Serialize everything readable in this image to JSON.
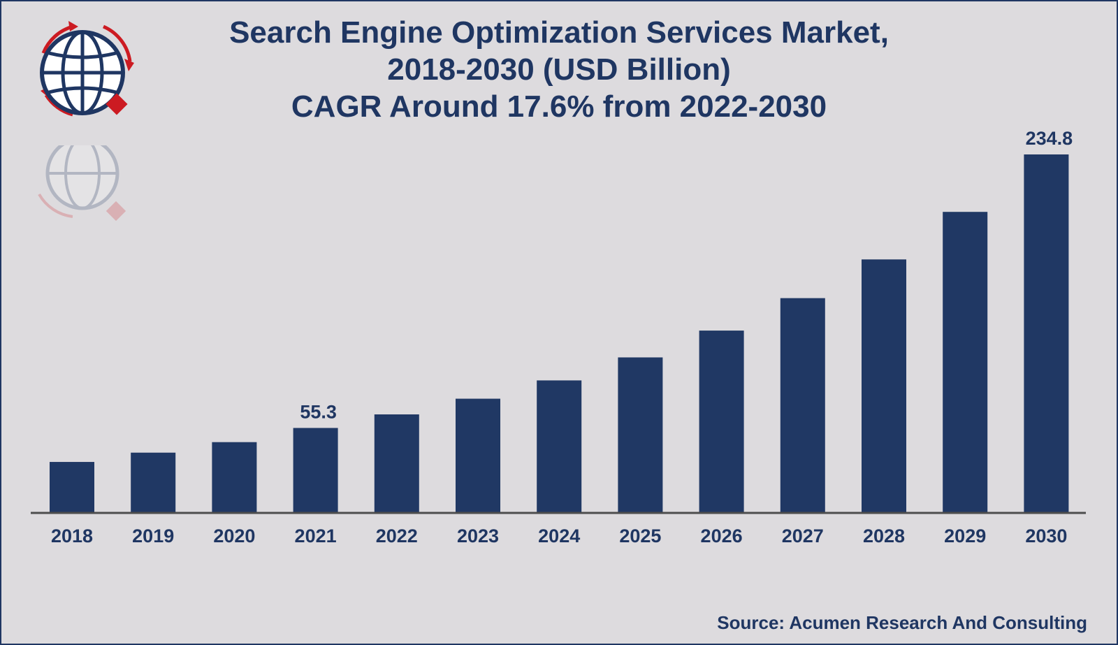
{
  "title_lines": [
    "Search Engine Optimization Services Market,",
    "2018-2030 (USD Billion)",
    "CAGR Around 17.6% from 2022-2030"
  ],
  "source": "Source: Acumen Research And Consulting",
  "logo": {
    "icon": "globe-logo-icon"
  },
  "colors": {
    "bar": "#203864",
    "text": "#1f3662",
    "background": "#dddbde",
    "axis": "#4d4d4d",
    "logo_red": "#cc1b22"
  },
  "chart_data": {
    "type": "bar",
    "title": "Search Engine Optimization Services Market, 2018-2030 (USD Billion)",
    "subtitle": "CAGR Around 17.6% from 2022-2030",
    "xlabel": "",
    "ylabel": "",
    "categories": [
      "2018",
      "2019",
      "2020",
      "2021",
      "2022",
      "2023",
      "2024",
      "2025",
      "2026",
      "2027",
      "2028",
      "2029",
      "2030"
    ],
    "values": [
      33.0,
      39.1,
      46.0,
      55.3,
      64.2,
      74.5,
      86.5,
      101.6,
      119.2,
      140.5,
      165.9,
      197.1,
      234.8
    ],
    "data_labels": [
      {
        "category": "2021",
        "text": "55.3"
      },
      {
        "category": "2030",
        "text": "234.8"
      }
    ],
    "ylim": [
      0,
      234.8
    ],
    "grid": false,
    "legend": "none"
  }
}
